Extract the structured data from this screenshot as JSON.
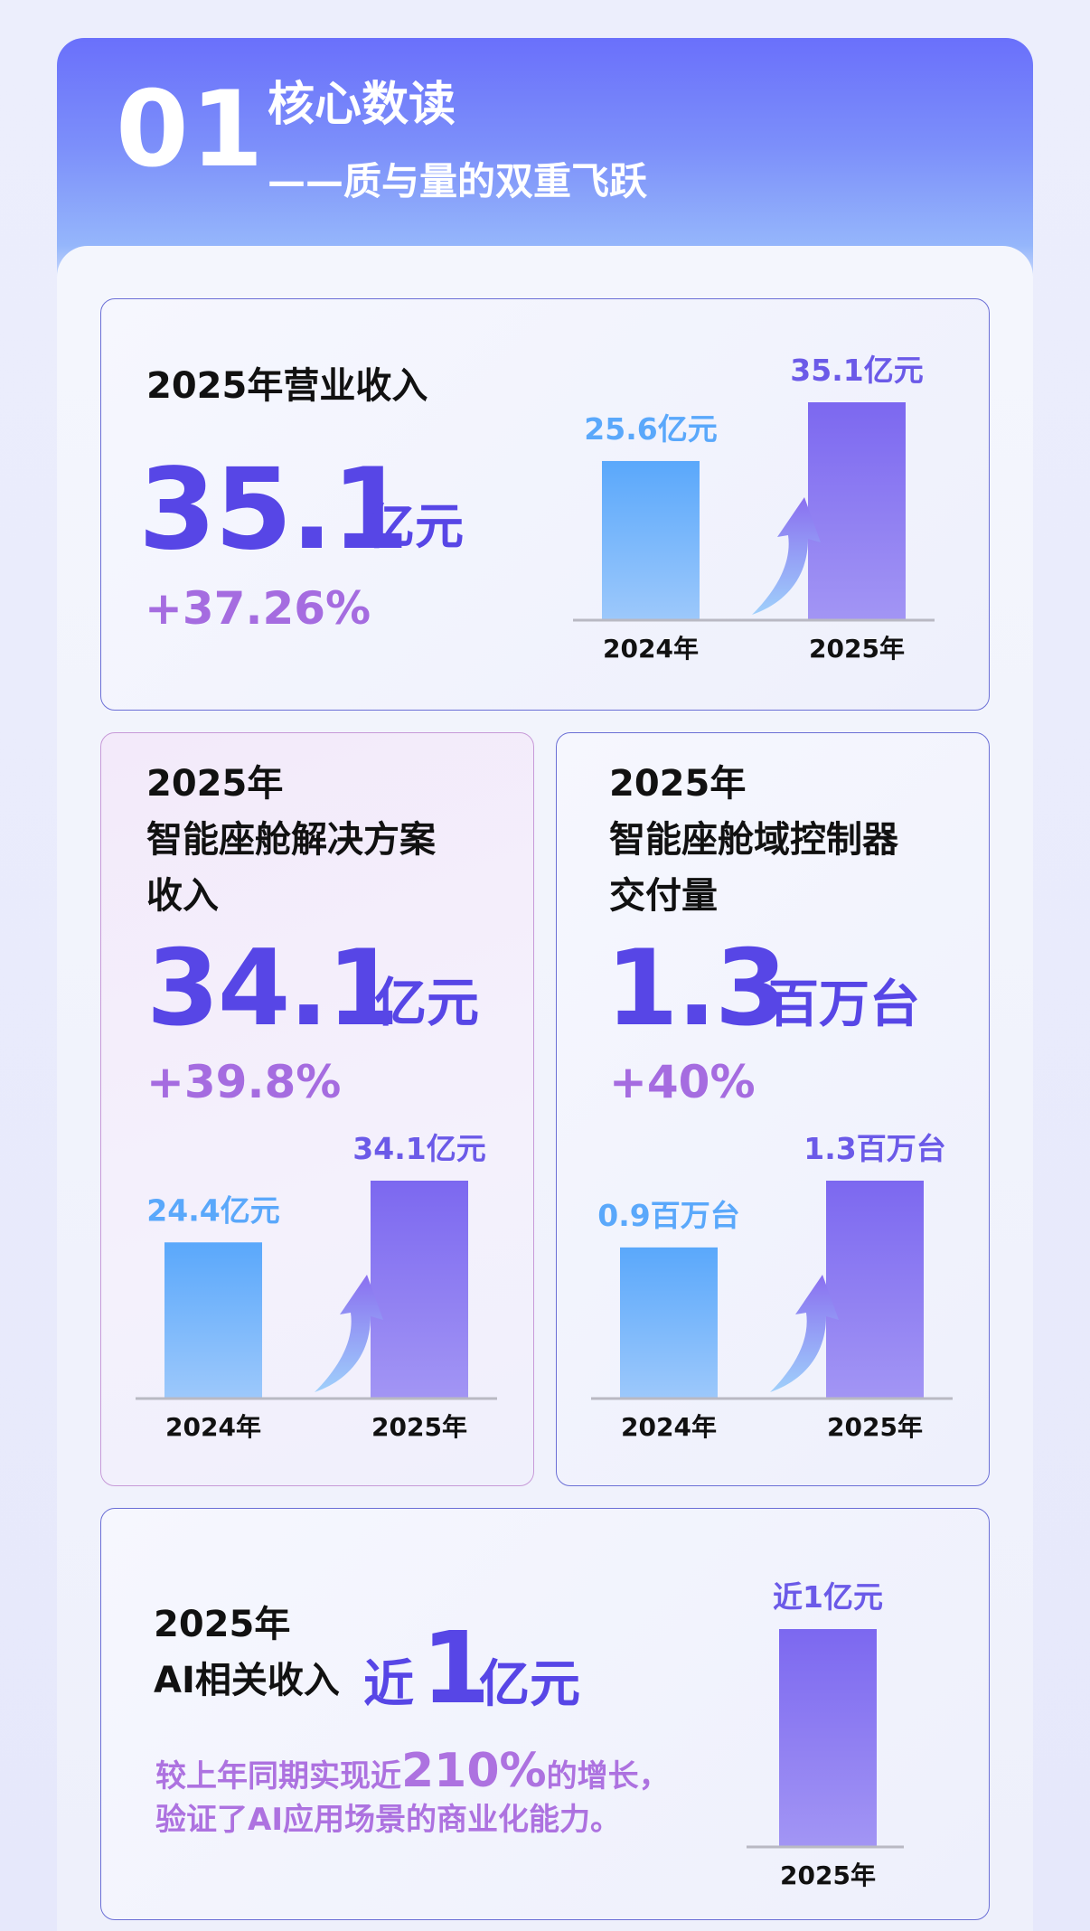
{
  "header": {
    "number": "01",
    "title": "核心数读",
    "subtitle": "——质与量的双重飞跃"
  },
  "colors": {
    "accent": "#5746e6",
    "growth": "#a56ce0",
    "bar_2024": "#5aa8fb",
    "bar_2025": "#7c68f0",
    "label_2024": "#5aa8fb",
    "label_2025": "#6b5ae8"
  },
  "cards": {
    "revenue": {
      "label": "2025年营业收入",
      "value": "35.1",
      "unit": "亿元",
      "growth": "+37.26%"
    },
    "cockpit": {
      "label_line1": "2025年",
      "label_line2": "智能座舱解决方案",
      "label_line3": "收入",
      "value": "34.1",
      "unit": "亿元",
      "growth": "+39.8%"
    },
    "controller": {
      "label_line1": "2025年",
      "label_line2": "智能座舱域控制器",
      "label_line3": "交付量",
      "value": "1.3",
      "unit": "百万台",
      "growth": "+40%"
    },
    "ai": {
      "label_line1": "2025年",
      "label_line2": "AI相关收入",
      "prefix": "近",
      "value": "1",
      "unit": "亿元",
      "desc_part1": "较上年同期实现近",
      "desc_highlight": "210%",
      "desc_part2": "的增长，",
      "desc_line2": "验证了AI应用场景的商业化能力。"
    }
  },
  "chart_data": [
    {
      "type": "bar",
      "categories": [
        "2024年",
        "2025年"
      ],
      "values": [
        25.6,
        35.1
      ],
      "data_labels": [
        "25.6亿元",
        "35.1亿元"
      ]
    },
    {
      "type": "bar",
      "categories": [
        "2024年",
        "2025年"
      ],
      "values": [
        24.4,
        34.1
      ],
      "data_labels": [
        "24.4亿元",
        "34.1亿元"
      ]
    },
    {
      "type": "bar",
      "categories": [
        "2024年",
        "2025年"
      ],
      "values": [
        0.9,
        1.3
      ],
      "data_labels": [
        "0.9百万台",
        "1.3百万台"
      ]
    },
    {
      "type": "bar",
      "categories": [
        "2025年"
      ],
      "values": [
        1
      ],
      "data_labels": [
        "近1亿元"
      ]
    }
  ]
}
